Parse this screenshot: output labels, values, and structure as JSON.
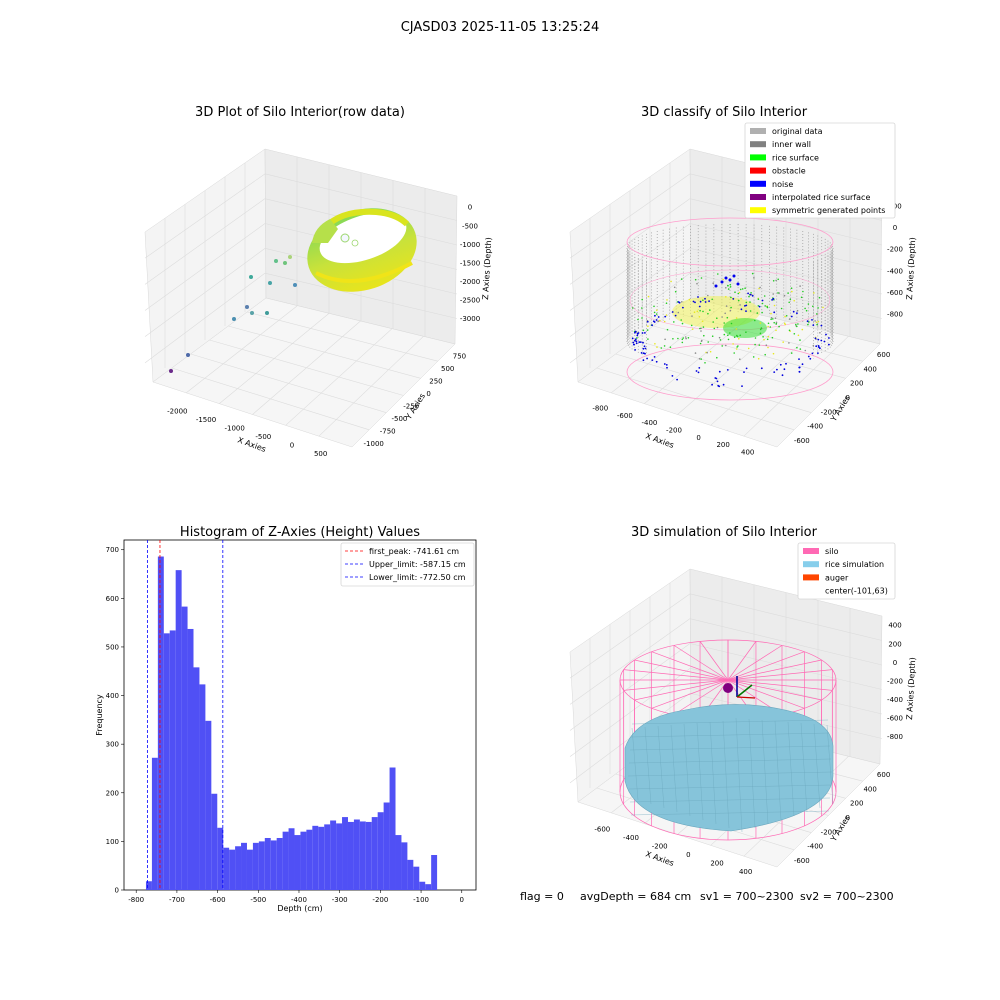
{
  "figure": {
    "suptitle": "CJASD03 2025-11-05 13:25:24",
    "footer": {
      "flag": "flag = 0",
      "avg_depth": "avgDepth = 684 cm",
      "sv1": "sv1 = 700~2300",
      "sv2": "sv2 = 700~2300"
    }
  },
  "panels": {
    "raw": {
      "title": "3D Plot of Silo Interior(row data)",
      "xlabel": "X Axies",
      "ylabel": "Y Axies",
      "zlabel": "Z Axies (Depth)",
      "xticks": [
        "-2000",
        "-1500",
        "-1000",
        "-500",
        "0",
        "500"
      ],
      "yticks": [
        "-1000",
        "-750",
        "-500",
        "-250",
        "0",
        "250",
        "500",
        "750"
      ],
      "zticks": [
        "0",
        "-500",
        "-1000",
        "-1500",
        "-2000",
        "-2500",
        "-3000"
      ]
    },
    "classify": {
      "title": "3D classify of Silo Interior",
      "xlabel": "X Axies",
      "ylabel": "Y Axies",
      "zlabel": "Z Axies (Depth)",
      "xticks": [
        "-800",
        "-600",
        "-400",
        "-200",
        "0",
        "200",
        "400"
      ],
      "yticks": [
        "-600",
        "-400",
        "-200",
        "0",
        "200",
        "400",
        "600"
      ],
      "zticks": [
        "200",
        "0",
        "-200",
        "-400",
        "-600",
        "-800"
      ],
      "legend": [
        {
          "label": "original data",
          "color": "#b0b0b0"
        },
        {
          "label": "inner wall",
          "color": "#808080"
        },
        {
          "label": "rice surface",
          "color": "#00ff00"
        },
        {
          "label": "obstacle",
          "color": "#ff0000"
        },
        {
          "label": "noise",
          "color": "#0000ff"
        },
        {
          "label": "interpolated rice surface",
          "color": "#800080"
        },
        {
          "label": "symmetric generated points",
          "color": "#ffff00"
        }
      ]
    },
    "simulation": {
      "title": "3D simulation of Silo Interior",
      "xlabel": "X Axies",
      "ylabel": "Y Axies",
      "zlabel": "Z Axies (Depth)",
      "xticks": [
        "-600",
        "-400",
        "-200",
        "0",
        "200",
        "400"
      ],
      "yticks": [
        "-600",
        "-400",
        "-200",
        "0",
        "200",
        "400",
        "600"
      ],
      "zticks": [
        "400",
        "200",
        "0",
        "-200",
        "-400",
        "-600",
        "-800"
      ],
      "legend": [
        {
          "label": "silo",
          "color": "#ff69b4"
        },
        {
          "label": "rice simulation",
          "color": "#87ceeb"
        },
        {
          "label": "auger",
          "color": "#ff4500"
        },
        {
          "label": "center(-101,63)",
          "color": ""
        }
      ]
    }
  },
  "chart_data": [
    {
      "type": "heatmap",
      "title": "3D Plot of Silo Interior(row data)",
      "xlabel": "X Axies",
      "ylabel": "Y Axies",
      "zlabel": "Z Axies (Depth)",
      "xlim": [
        -2200,
        600
      ],
      "ylim": [
        -1000,
        750
      ],
      "zlim": [
        -3000,
        0
      ]
    },
    {
      "type": "scatter",
      "title": "3D classify of Silo Interior",
      "xlabel": "X Axies",
      "ylabel": "Y Axies",
      "zlabel": "Z Axies (Depth)",
      "xlim": [
        -800,
        450
      ],
      "ylim": [
        -600,
        600
      ],
      "zlim": [
        -850,
        250
      ],
      "series": [
        {
          "name": "original data"
        },
        {
          "name": "inner wall"
        },
        {
          "name": "rice surface"
        },
        {
          "name": "obstacle"
        },
        {
          "name": "noise"
        },
        {
          "name": "interpolated rice surface"
        },
        {
          "name": "symmetric generated points"
        }
      ]
    },
    {
      "type": "bar",
      "title": "Histogram of Z-Axies (Height) Values",
      "xlabel": "Depth (cm)",
      "ylabel": "Frequency",
      "xlim": [
        -830,
        35
      ],
      "ylim": [
        0,
        720
      ],
      "xticks": [
        -800,
        -700,
        -600,
        -500,
        -400,
        -300,
        -200,
        -100,
        0
      ],
      "yticks": [
        0,
        100,
        200,
        300,
        400,
        500,
        600,
        700
      ],
      "bin_start": -776,
      "bin_width": 14.6,
      "values": [
        18,
        272,
        686,
        528,
        534,
        658,
        583,
        537,
        458,
        423,
        348,
        198,
        128,
        87,
        83,
        90,
        97,
        83,
        97,
        100,
        107,
        102,
        107,
        120,
        127,
        113,
        120,
        124,
        132,
        130,
        135,
        143,
        137,
        150,
        140,
        145,
        141,
        140,
        150,
        160,
        180,
        252,
        113,
        98,
        62,
        48,
        17,
        12,
        72
      ],
      "vlines": [
        {
          "name": "first_peak: -741.61 cm",
          "x": -741.61,
          "color": "#ff0000"
        },
        {
          "name": "Upper_limit: -587.15 cm",
          "x": -587.15,
          "color": "#0000ff"
        },
        {
          "name": "Lower_limit: -772.50 cm",
          "x": -772.5,
          "color": "#0000ff"
        }
      ],
      "legend": "top-right"
    },
    {
      "type": "area",
      "title": "3D simulation of Silo Interior",
      "xlabel": "X Axies",
      "ylabel": "Y Axies",
      "zlabel": "Z Axies (Depth)",
      "xlim": [
        -700,
        450
      ],
      "ylim": [
        -600,
        600
      ],
      "zlim": [
        -850,
        450
      ],
      "series": [
        {
          "name": "silo"
        },
        {
          "name": "rice simulation"
        },
        {
          "name": "auger"
        },
        {
          "name": "center(-101,63)"
        }
      ]
    }
  ]
}
